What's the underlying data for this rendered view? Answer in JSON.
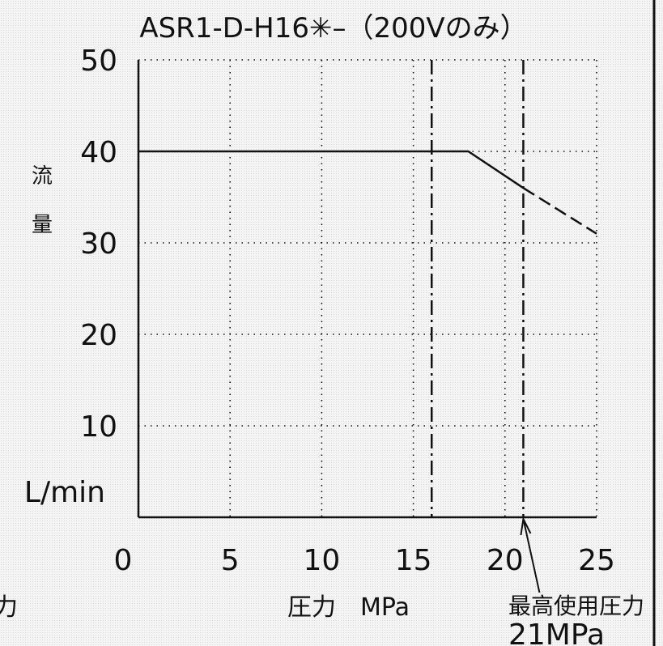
{
  "chart_data": {
    "type": "line",
    "title": "ASR1-D-H16✳–（200Vのみ）",
    "xlabel": "圧力　MPa",
    "ylabel_chars": [
      "流",
      "量"
    ],
    "yunit": "L/min",
    "xlim": [
      0,
      25
    ],
    "ylim": [
      0,
      50
    ],
    "xticks": [
      "0",
      "5",
      "10",
      "15",
      "20",
      "25"
    ],
    "yticks": [
      "10",
      "20",
      "30",
      "40",
      "50"
    ],
    "grid": true,
    "series": [
      {
        "style": "solid",
        "x": [
          0,
          18,
          21
        ],
        "y": [
          40,
          40,
          36
        ]
      },
      {
        "style": "dashed",
        "x": [
          21,
          25
        ],
        "y": [
          36,
          31
        ]
      }
    ],
    "vlines": [
      {
        "x": 16,
        "style": "dash-dot"
      },
      {
        "x": 21,
        "style": "dash-dot"
      }
    ],
    "annotation": {
      "x": 21,
      "line1": "最高使用圧力",
      "line2": "21MPa"
    },
    "left_fragment": "力"
  },
  "colors": {
    "ink": "#111111",
    "background": "#f4f4f4"
  }
}
